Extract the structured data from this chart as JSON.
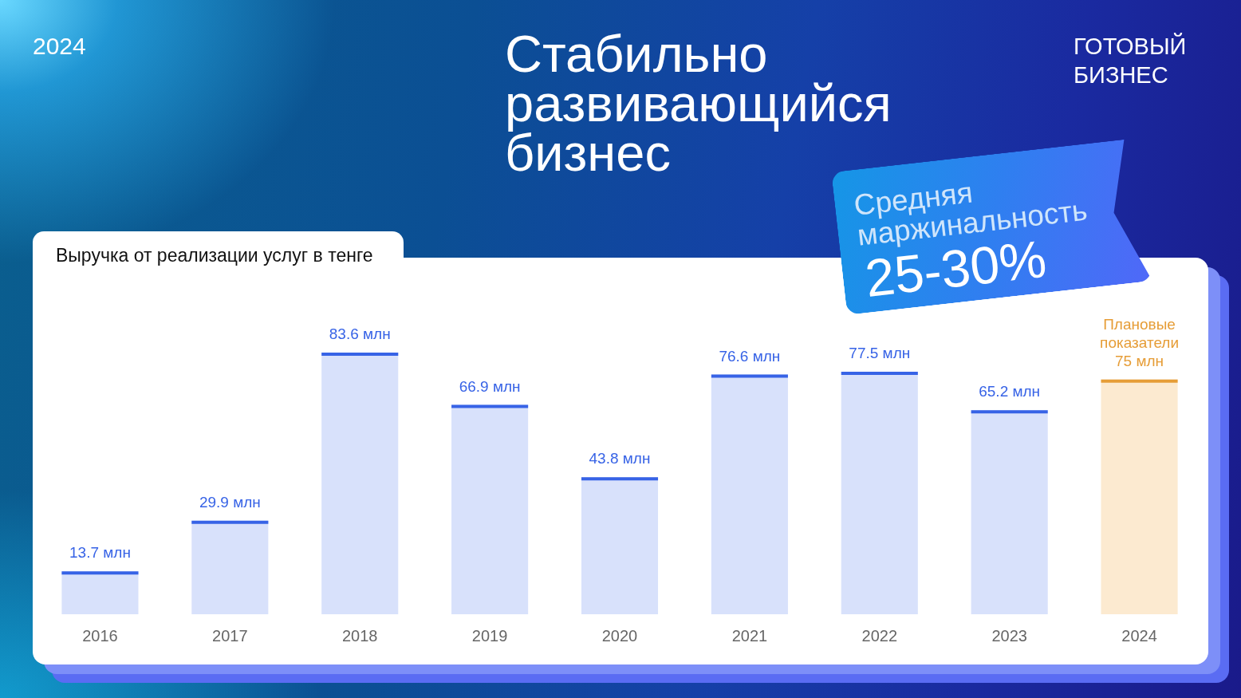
{
  "chart_data": {
    "type": "bar",
    "title": "Стабильно развивающийся бизнес",
    "subtitle": "Выручка от реализации услуг в тенге",
    "categories": [
      "2016",
      "2017",
      "2018",
      "2019",
      "2020",
      "2021",
      "2022",
      "2023",
      "2024"
    ],
    "values": [
      13.7,
      29.9,
      83.6,
      66.9,
      43.8,
      76.6,
      77.5,
      65.2,
      75
    ],
    "colors": [
      "#d8e1fb",
      "#d8e1fb",
      "#d8e1fb",
      "#d8e1fb",
      "#d8e1fb",
      "#d8e1fb",
      "#d8e1fb",
      "#d8e1fb",
      "#fcead0"
    ],
    "value_labels": [
      "13.7 млн",
      "29.9 млн",
      "83.6 млн",
      "66.9 млн",
      "43.8 млн",
      "76.6 млн",
      "77.5 млн",
      "65.2 млн",
      "75 млн"
    ],
    "annotations": [
      "2024",
      "ГОТОВЫЙ БИЗНЕС",
      "Средняя маржинальность",
      "25-30%",
      {
        "text": "Плановые показатели",
        "x": "2024",
        "y": 75
      }
    ]
  }
}
